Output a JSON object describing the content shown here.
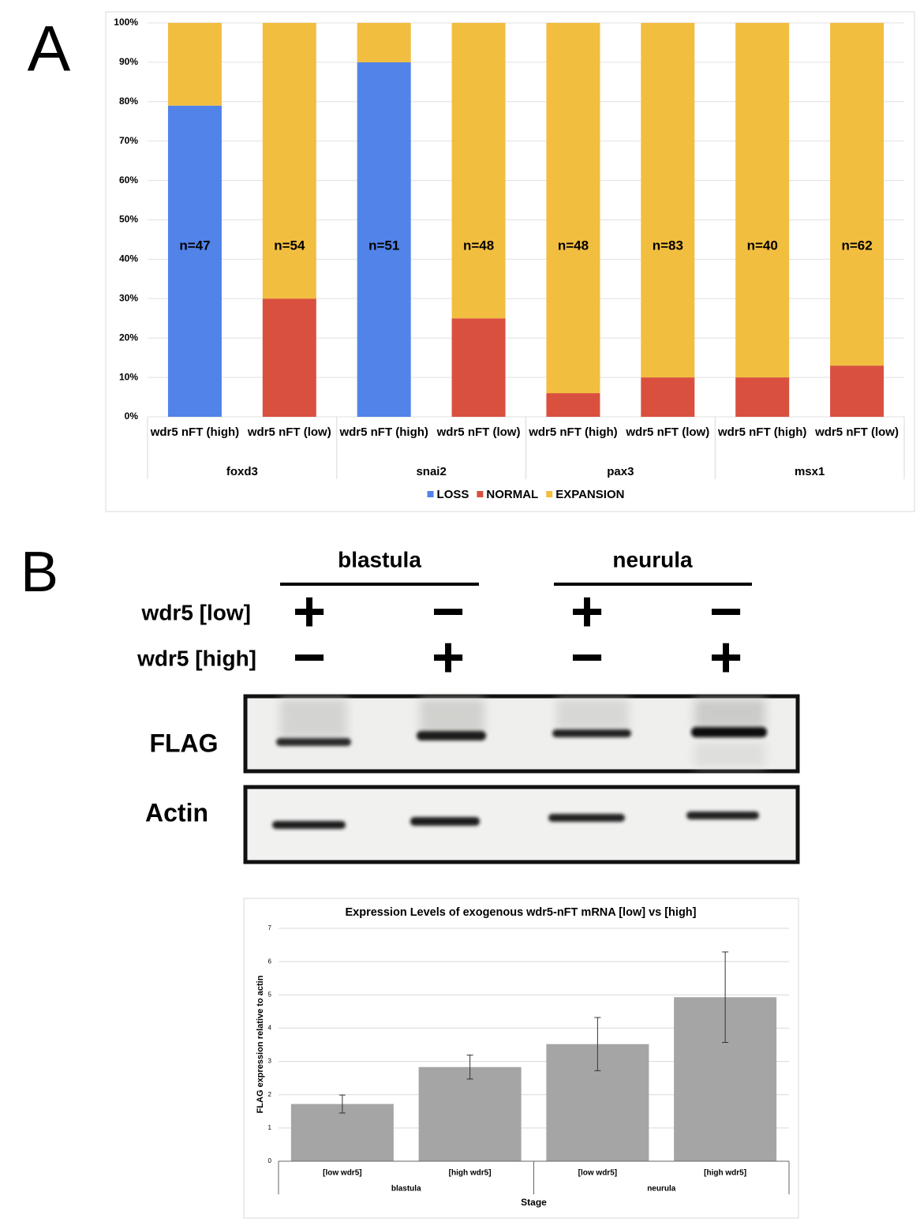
{
  "panels": {
    "a": "A",
    "b": "B"
  },
  "chart_data": [
    {
      "type": "stacked_bar",
      "categories": [
        "wdr5 nFT (high)",
        "wdr5 nFT (low)",
        "wdr5 nFT (high)",
        "wdr5 nFT (low)",
        "wdr5 nFT (high)",
        "wdr5 nFT (low)",
        "wdr5 nFT (high)",
        "wdr5 nFT (low)"
      ],
      "groups": [
        "foxd3",
        "snai2",
        "pax3",
        "msx1"
      ],
      "series": [
        {
          "name": "LOSS",
          "color": "#5183e8",
          "values": [
            79,
            0,
            90,
            0,
            0,
            0,
            0,
            0
          ]
        },
        {
          "name": "NORMAL",
          "color": "#d9503f",
          "values": [
            0,
            30,
            0,
            25,
            6,
            10,
            10,
            13
          ]
        },
        {
          "name": "EXPANSION",
          "color": "#f2be40",
          "values": [
            21,
            70,
            10,
            75,
            94,
            90,
            90,
            87
          ]
        }
      ],
      "annotations": [
        "n=47",
        "n=54",
        "n=51",
        "n=48",
        "n=48",
        "n=83",
        "n=40",
        "n=62"
      ],
      "ylim": [
        0,
        100
      ],
      "yticks": [
        {
          "value": 0,
          "label": "0%"
        },
        {
          "value": 10,
          "label": "10%"
        },
        {
          "value": 20,
          "label": "20%"
        },
        {
          "value": 30,
          "label": "30%"
        },
        {
          "value": 40,
          "label": "40%"
        },
        {
          "value": 50,
          "label": "50%"
        },
        {
          "value": 60,
          "label": "60%"
        },
        {
          "value": 70,
          "label": "70%"
        },
        {
          "value": 80,
          "label": "80%"
        },
        {
          "value": 90,
          "label": "90%"
        },
        {
          "value": 100,
          "label": "100%"
        }
      ],
      "grid": true,
      "legend": "bottom"
    },
    {
      "type": "bar",
      "title": "Expression Levels of exogenous wdr5-nFT mRNA [low] vs [high]",
      "y_label": "FLAG expression relative to actin",
      "x_label": "Stage",
      "categories": [
        "[low wdr5]",
        "[high wdr5]",
        "[low wdr5]",
        "[high wdr5]"
      ],
      "groups": [
        "blastula",
        "neurula"
      ],
      "values": [
        1.72,
        2.83,
        3.52,
        4.93
      ],
      "errors": [
        0.27,
        0.36,
        0.8,
        1.36
      ],
      "color": "#a5a5a5",
      "ylim": [
        0,
        7
      ],
      "yticks": [
        0,
        1,
        2,
        3,
        4,
        5,
        6,
        7
      ],
      "grid": true
    }
  ],
  "blot": {
    "stages": [
      "blastula",
      "neurula"
    ],
    "conditions": [
      {
        "label": "wdr5 [low]",
        "signs": [
          "+",
          "−",
          "+",
          "−"
        ]
      },
      {
        "label": "wdr5 [high]",
        "signs": [
          "−",
          "+",
          "−",
          "+"
        ]
      }
    ],
    "rows": [
      "FLAG",
      "Actin"
    ]
  }
}
